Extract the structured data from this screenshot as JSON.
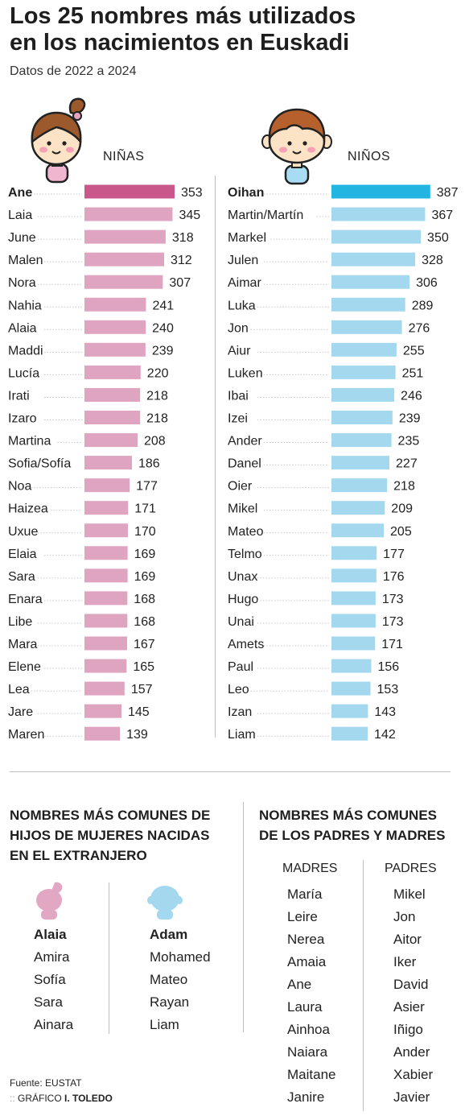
{
  "header": {
    "title_line1": "Los 25 nombres más utilizados",
    "title_line2": "en los nacimientos en Euskadi",
    "subtitle": "Datos de 2022 a 2024"
  },
  "colors": {
    "girls_top": "#c9578c",
    "girls": "#dfa4c0",
    "boys_top": "#22b5e2",
    "boys": "#a3d8ef",
    "rule": "#bdbdbd"
  },
  "chart_data": [
    {
      "type": "bar",
      "orientation": "horizontal",
      "title": "NIÑAS",
      "categories": [
        "Ane",
        "Laia",
        "June",
        "Malen",
        "Nora",
        "Nahia",
        "Alaia",
        "Maddi",
        "Lucía",
        "Irati",
        "Izaro",
        "Martina",
        "Sofia/Sofía",
        "Noa",
        "Haizea",
        "Uxue",
        "Elaia",
        "Sara",
        "Enara",
        "Libe",
        "Mara",
        "Elene",
        "Lea",
        "Jare",
        "Maren"
      ],
      "values": [
        353,
        345,
        318,
        312,
        307,
        241,
        240,
        239,
        220,
        218,
        218,
        208,
        186,
        177,
        171,
        170,
        169,
        169,
        168,
        168,
        167,
        165,
        157,
        145,
        139
      ]
    },
    {
      "type": "bar",
      "orientation": "horizontal",
      "title": "NIÑOS",
      "categories": [
        "Oihan",
        "Martin/Martín",
        "Markel",
        "Julen",
        "Aimar",
        "Luka",
        "Jon",
        "Aiur",
        "Luken",
        "Ibai",
        "Izei",
        "Ander",
        "Danel",
        "Oier",
        "Mikel",
        "Mateo",
        "Telmo",
        "Unax",
        "Hugo",
        "Unai",
        "Amets",
        "Paul",
        "Leo",
        "Izan",
        "Liam"
      ],
      "values": [
        387,
        367,
        350,
        328,
        306,
        289,
        276,
        255,
        251,
        246,
        239,
        235,
        227,
        218,
        209,
        205,
        177,
        176,
        173,
        173,
        171,
        156,
        153,
        143,
        142
      ]
    }
  ],
  "foreign": {
    "heading_line1": "NOMBRES MÁS COMUNES DE",
    "heading_line2": "HIJOS DE MUJERES NACIDAS",
    "heading_line3": "EN EL EXTRANJERO",
    "girls_icon": "girl-silhouette-icon",
    "boys_icon": "boy-silhouette-icon",
    "girls": [
      "Alaia",
      "Amira",
      "Sofía",
      "Sara",
      "Ainara"
    ],
    "boys": [
      "Adam",
      "Mohamed",
      "Mateo",
      "Rayan",
      "Liam"
    ]
  },
  "parents": {
    "heading_line1": "NOMBRES MÁS COMUNES",
    "heading_line2": "DE LOS PADRES Y MADRES",
    "mothers_label": "MADRES",
    "fathers_label": "PADRES",
    "mothers": [
      "María",
      "Leire",
      "Nerea",
      "Amaia",
      "Ane",
      "Laura",
      "Ainhoa",
      "Naiara",
      "Maitane",
      "Janire"
    ],
    "fathers": [
      "Mikel",
      "Jon",
      "Aitor",
      "Iker",
      "David",
      "Asier",
      "Iñigo",
      "Ander",
      "Xabier",
      "Javier"
    ]
  },
  "footer": {
    "source": "Fuente: EUSTAT",
    "credit_label": "GRÁFICO",
    "credit_name": "I. TOLEDO"
  }
}
